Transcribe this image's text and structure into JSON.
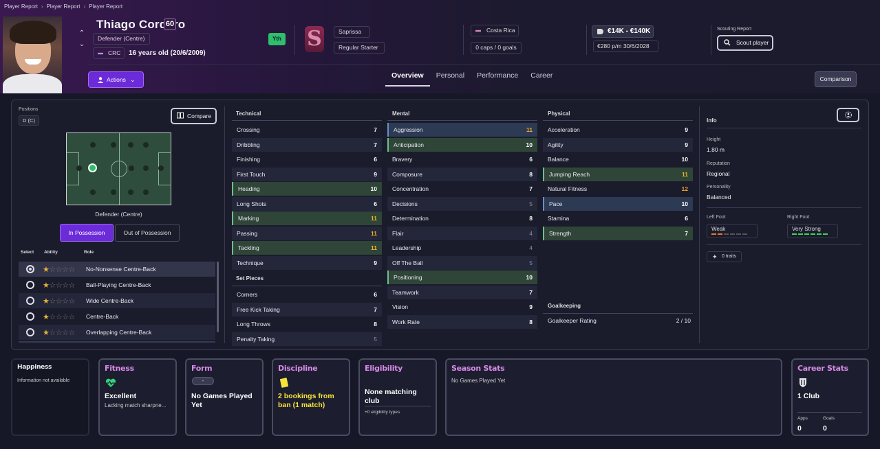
{
  "breadcrumbs": [
    "Player Report",
    "Player Report",
    "Player Report"
  ],
  "player": {
    "name": "Thiago Cordero",
    "ability_badge": "60",
    "position": "Defender (Centre)",
    "nationality_code": "CRC",
    "age_dob": "16 years old (20/6/2009)",
    "youth_badge": "Yth",
    "club": "Saprissa",
    "squad_status": "Regular Starter",
    "nation": "Costa Rica",
    "caps_goals": "0 caps / 0 goals",
    "value_range": "€14K - €140K",
    "wage": "€280 p/m",
    "contract_end": "30/6/2028",
    "club_logo_letter": "S"
  },
  "header": {
    "scouting_label": "Scouting Report",
    "scout_button": "Scout player",
    "actions_button": "Actions",
    "comparison_button": "Comparison",
    "tabs": [
      "Overview",
      "Personal",
      "Performance",
      "Career"
    ]
  },
  "positions_panel": {
    "title": "Positions",
    "chip": "D (C)",
    "compare_button": "Compare",
    "pitch_label": "Defender (Centre)",
    "in_possession": "In Possession",
    "out_of_possession": "Out of Possession",
    "headers": {
      "select": "Select",
      "ability": "Ability",
      "role": "Role"
    },
    "roles": [
      {
        "name": "No-Nonsense Centre-Back",
        "stars": 1
      },
      {
        "name": "Ball-Playing Centre-Back",
        "stars": 1
      },
      {
        "name": "Wide Centre-Back",
        "stars": 1
      },
      {
        "name": "Centre-Back",
        "stars": 1
      },
      {
        "name": "Overlapping Centre-Back",
        "stars": 1
      }
    ]
  },
  "technical": {
    "title": "Technical",
    "attrs": [
      {
        "name": "Crossing",
        "value": "7"
      },
      {
        "name": "Dribbling",
        "value": "7"
      },
      {
        "name": "Finishing",
        "value": "6"
      },
      {
        "name": "First Touch",
        "value": "9"
      },
      {
        "name": "Heading",
        "value": "10"
      },
      {
        "name": "Long Shots",
        "value": "6"
      },
      {
        "name": "Marking",
        "value": "11"
      },
      {
        "name": "Passing",
        "value": "11"
      },
      {
        "name": "Tackling",
        "value": "11"
      },
      {
        "name": "Technique",
        "value": "9"
      }
    ]
  },
  "set_pieces": {
    "title": "Set Pieces",
    "attrs": [
      {
        "name": "Corners",
        "value": "6"
      },
      {
        "name": "Free Kick Taking",
        "value": "7"
      },
      {
        "name": "Long Throws",
        "value": "8"
      },
      {
        "name": "Penalty Taking",
        "value": "5"
      }
    ]
  },
  "mental": {
    "title": "Mental",
    "attrs": [
      {
        "name": "Aggression",
        "value": "11"
      },
      {
        "name": "Anticipation",
        "value": "10"
      },
      {
        "name": "Bravery",
        "value": "6"
      },
      {
        "name": "Composure",
        "value": "8"
      },
      {
        "name": "Concentration",
        "value": "7"
      },
      {
        "name": "Decisions",
        "value": "5"
      },
      {
        "name": "Determination",
        "value": "8"
      },
      {
        "name": "Flair",
        "value": "4"
      },
      {
        "name": "Leadership",
        "value": "4"
      },
      {
        "name": "Off The Ball",
        "value": "5"
      },
      {
        "name": "Positioning",
        "value": "10"
      },
      {
        "name": "Teamwork",
        "value": "7"
      },
      {
        "name": "Vision",
        "value": "9"
      },
      {
        "name": "Work Rate",
        "value": "8"
      }
    ]
  },
  "physical": {
    "title": "Physical",
    "attrs": [
      {
        "name": "Acceleration",
        "value": "9"
      },
      {
        "name": "Agility",
        "value": "9"
      },
      {
        "name": "Balance",
        "value": "10"
      },
      {
        "name": "Jumping Reach",
        "value": "11"
      },
      {
        "name": "Natural Fitness",
        "value": "12"
      },
      {
        "name": "Pace",
        "value": "10"
      },
      {
        "name": "Stamina",
        "value": "6"
      },
      {
        "name": "Strength",
        "value": "7"
      }
    ]
  },
  "goalkeeping": {
    "title": "Goalkeeping",
    "label": "Goalkeeper Rating",
    "value": "2 / 10"
  },
  "info": {
    "title": "Info",
    "height_label": "Height",
    "height": "1.80 m",
    "reputation_label": "Reputation",
    "reputation": "Regional",
    "personality_label": "Personality",
    "personality": "Balanced",
    "left_foot_label": "Left Foot",
    "left_foot": "Weak",
    "right_foot_label": "Right Foot",
    "right_foot": "Very Strong",
    "left_foot_level": 2,
    "right_foot_level": 6,
    "traits": "0 traits"
  },
  "cards": {
    "happiness": {
      "title": "Happiness",
      "text": "Information not available"
    },
    "fitness": {
      "title": "Fitness",
      "status": "Excellent",
      "sub": "Lacking match sharpne..."
    },
    "form": {
      "title": "Form",
      "chip": "-",
      "status": "No Games Played Yet"
    },
    "discipline": {
      "title": "Discipline",
      "status": "2 bookings from ban (1 match)"
    },
    "eligibility": {
      "title": "Eligibility",
      "status": "None matching club",
      "sub": "+0 eligibility types"
    },
    "season": {
      "title": "Season Stats",
      "text": "No Games Played Yet"
    },
    "career": {
      "title": "Career Stats",
      "clubs": "1 Club",
      "apps_label": "Apps",
      "apps": "0",
      "goals_label": "Goals",
      "goals": "0"
    }
  },
  "colors": {
    "accent": "#6c2bd9",
    "card_title": "#d88ae8",
    "highlight_green": "#2f4538",
    "highlight_blue": "#2d3a54",
    "gold": "#f0b429"
  }
}
